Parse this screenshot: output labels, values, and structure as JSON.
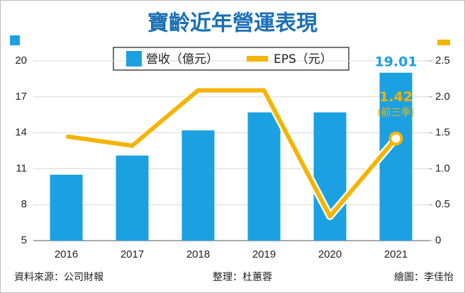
{
  "chart_data": {
    "type": "bar",
    "title": "寶齡近年營運表現",
    "categories": [
      "2016",
      "2017",
      "2018",
      "2019",
      "2020",
      "2021"
    ],
    "series": [
      {
        "name": "營收（億元）",
        "type": "bar",
        "color": "#1ba1e2",
        "values": [
          10.5,
          12.1,
          14.2,
          15.7,
          15.7,
          19.01
        ],
        "value_labels": [
          null,
          null,
          null,
          null,
          null,
          "19.01"
        ]
      },
      {
        "name": "EPS（元）",
        "type": "line",
        "axis": "y2",
        "color": "#f5b400",
        "values": [
          1.45,
          1.32,
          2.09,
          2.09,
          0.34,
          1.42
        ],
        "value_labels": [
          null,
          null,
          null,
          null,
          null,
          "1.42"
        ]
      }
    ],
    "annotation": "(前三季)",
    "ylim": [
      5,
      20
    ],
    "yticks": [
      5,
      8,
      11,
      14,
      17,
      20
    ],
    "y2lim": [
      0,
      2.5
    ],
    "y2ticks": [
      0,
      0.5,
      {
        "value": 1,
        "label": "1.0"
      },
      1.5,
      {
        "value": 2,
        "label": "2.0"
      },
      2.5
    ],
    "grid": true,
    "footer": {
      "source": "資料來源：公司財報",
      "editor": "整理：杜蕙蓉",
      "artist": "繪圖：李佳怡"
    }
  }
}
